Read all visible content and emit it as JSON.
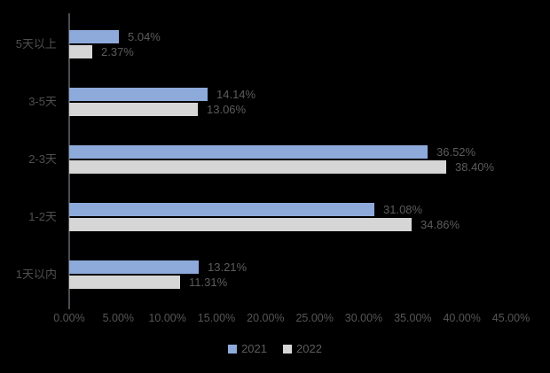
{
  "chart_data": {
    "type": "bar",
    "orientation": "horizontal",
    "title": "",
    "categories": [
      "5天以上",
      "3-5天",
      "2-3天",
      "1-2天",
      "1天以内"
    ],
    "series": [
      {
        "name": "2021",
        "color": "#8eaadb",
        "values": [
          5.04,
          14.14,
          36.52,
          31.08,
          13.21
        ],
        "labels": [
          "5.04%",
          "14.14%",
          "36.52%",
          "31.08%",
          "13.21%"
        ]
      },
      {
        "name": "2022",
        "color": "#d6d6d6",
        "values": [
          2.37,
          13.06,
          38.4,
          34.86,
          11.31
        ],
        "labels": [
          "2.37%",
          "13.06%",
          "38.40%",
          "34.86%",
          "11.31%"
        ]
      }
    ],
    "x_axis": {
      "min": 0,
      "max": 45,
      "tick_step": 5,
      "tick_labels": [
        "0.00%",
        "5.00%",
        "10.00%",
        "15.00%",
        "20.00%",
        "25.00%",
        "30.00%",
        "35.00%",
        "40.00%",
        "45.00%"
      ]
    },
    "legend": {
      "position": "bottom",
      "entries": [
        "2021",
        "2022"
      ]
    },
    "grid": false,
    "background_color": "#000000",
    "axis_line_color": "#4a4d52",
    "text_color": "#5c5c5c"
  }
}
